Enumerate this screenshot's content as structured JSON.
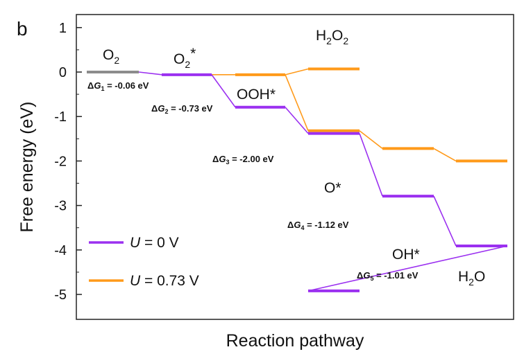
{
  "chart_data": {
    "type": "line",
    "panel_label": "b",
    "title": "",
    "xlabel": "Reaction pathway",
    "ylabel": "Free energy (eV)",
    "ylim": [
      -5.5,
      1.2
    ],
    "y_ticks": [
      1,
      0,
      -1,
      -2,
      -3,
      -4,
      -5
    ],
    "y_tick_labels": [
      "1",
      "0",
      "-1",
      "-2",
      "-3",
      "-4",
      "-5"
    ],
    "x_ticks_shown": false,
    "grid": false,
    "legend_position": "bottom-left",
    "states": [
      {
        "id": "O2",
        "label": "O",
        "sub": "2",
        "sup": ""
      },
      {
        "id": "O2*",
        "label": "O",
        "sub": "2",
        "sup": "*"
      },
      {
        "id": "OOH*",
        "label": "OOH*",
        "sub": "",
        "sup": ""
      },
      {
        "id": "O*",
        "label": "O*",
        "sub": "",
        "sup": ""
      },
      {
        "id": "OH*",
        "label": "OH*",
        "sub": "",
        "sup": ""
      },
      {
        "id": "H2O",
        "label": "H",
        "sub": "2",
        "sup": "O"
      },
      {
        "id": "H2O2",
        "label": "H",
        "sub": "2",
        "sup": "O2"
      }
    ],
    "series": [
      {
        "name": "U = 0 V",
        "legend_prefix": "U",
        "legend_suffix": " = 0 V",
        "color": "#9b30f0",
        "levels": [
          {
            "step": 0,
            "y": 0.0,
            "color": "#8c8c8c"
          },
          {
            "step": 1,
            "y": -0.06
          },
          {
            "step": 2,
            "y": -0.79
          },
          {
            "step": 3,
            "y": -1.38
          },
          {
            "step": 4,
            "y": -2.79
          },
          {
            "step": 5,
            "y": -3.91
          },
          {
            "step": 6,
            "y": -4.92
          }
        ]
      },
      {
        "name": "U = 0.73 V",
        "legend_prefix": "U",
        "legend_suffix": " = 0.73 V",
        "color": "#ff9a1a",
        "levels": [
          {
            "step": 2,
            "y": -0.06
          },
          {
            "step": 3,
            "y": -1.32
          },
          {
            "step": 4,
            "y": -1.72
          },
          {
            "step": 5,
            "y": -2.0
          }
        ],
        "branch": {
          "step": 3,
          "y": 0.07,
          "from_step": 2
        }
      }
    ],
    "delta_g": [
      {
        "pre": "Δ",
        "var": "G",
        "sub": "1",
        "text": " = -0.06 eV"
      },
      {
        "pre": "Δ",
        "var": "G",
        "sub": "2",
        "text": " = -0.73 eV"
      },
      {
        "pre": "Δ",
        "var": "G",
        "sub": "3",
        "text": " = -2.00 eV"
      },
      {
        "pre": "Δ",
        "var": "G",
        "sub": "4",
        "text": " = -1.12 eV"
      },
      {
        "pre": "Δ",
        "var": "G",
        "sub": "5",
        "text": " = -1.01 eV"
      }
    ]
  }
}
